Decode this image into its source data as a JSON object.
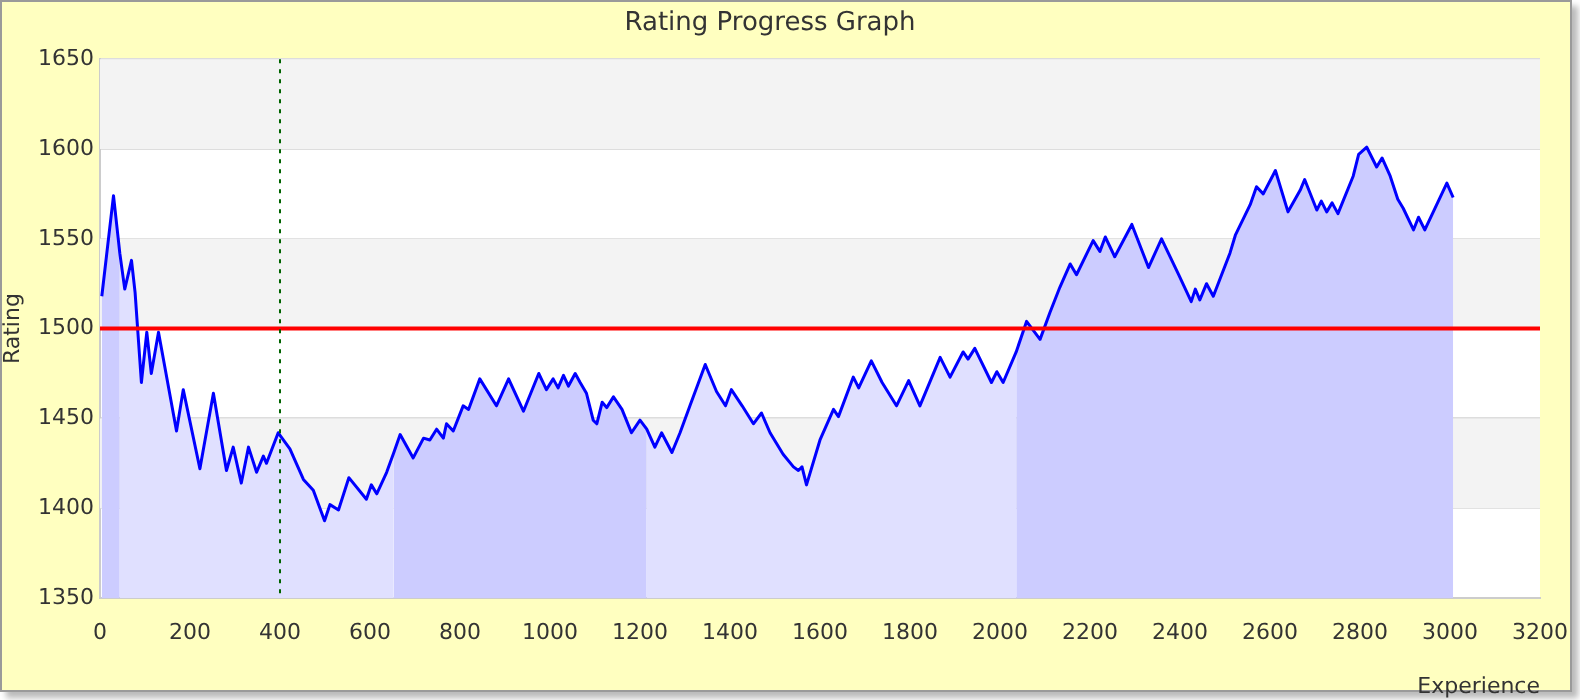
{
  "chart_data": {
    "type": "line",
    "title": "Rating Progress Graph",
    "xlabel": "Experience",
    "ylabel": "Rating",
    "xlim": [
      0,
      3200
    ],
    "xticks": [
      0,
      200,
      400,
      600,
      800,
      1000,
      1200,
      1400,
      1600,
      1800,
      2000,
      2200,
      2400,
      2600,
      2800,
      3000,
      3200
    ],
    "ylim": [
      1350,
      1650
    ],
    "yticks": [
      1350,
      1400,
      1450,
      1500,
      1550,
      1600,
      1650
    ],
    "grid": "y",
    "legend": false,
    "x": [
      4,
      30,
      44,
      55,
      70,
      78,
      92,
      104,
      114,
      130,
      170,
      185,
      222,
      252,
      281,
      296,
      314,
      330,
      348,
      363,
      370,
      396,
      422,
      452,
      474,
      499,
      511,
      530,
      553,
      592,
      603,
      615,
      637,
      653,
      667,
      696,
      719,
      733,
      748,
      763,
      770,
      785,
      807,
      819,
      844,
      881,
      908,
      941,
      975,
      992,
      1007,
      1018,
      1030,
      1041,
      1056,
      1067,
      1081,
      1096,
      1104,
      1116,
      1126,
      1141,
      1160,
      1181,
      1200,
      1215,
      1233,
      1248,
      1271,
      1289,
      1311,
      1345,
      1370,
      1390,
      1403,
      1427,
      1452,
      1470,
      1489,
      1518,
      1541,
      1552,
      1560,
      1570,
      1600,
      1630,
      1641,
      1674,
      1686,
      1714,
      1738,
      1770,
      1797,
      1822,
      1867,
      1889,
      1918,
      1929,
      1944,
      1981,
      1993,
      2007,
      2036,
      2059,
      2089,
      2111,
      2133,
      2156,
      2170,
      2207,
      2222,
      2234,
      2255,
      2293,
      2330,
      2359,
      2397,
      2425,
      2434,
      2444,
      2459,
      2474,
      2511,
      2523,
      2556,
      2570,
      2585,
      2612,
      2640,
      2667,
      2677,
      2704,
      2714,
      2726,
      2738,
      2751,
      2785,
      2797,
      2815,
      2837,
      2849,
      2867,
      2884,
      2896,
      2919,
      2930,
      2944,
      2993,
      3007
    ],
    "series": [
      {
        "color": "#0000ff",
        "values": [
          1518,
          1574,
          1542,
          1522,
          1538,
          1520,
          1470,
          1498,
          1475,
          1498,
          1443,
          1466,
          1422,
          1464,
          1421,
          1434,
          1414,
          1434,
          1420,
          1429,
          1425,
          1442,
          1433,
          1416,
          1410,
          1393,
          1402,
          1399,
          1417,
          1405,
          1413,
          1408,
          1420,
          1431,
          1441,
          1428,
          1439,
          1438,
          1444,
          1439,
          1447,
          1443,
          1457,
          1455,
          1472,
          1457,
          1472,
          1454,
          1475,
          1466,
          1472,
          1467,
          1474,
          1468,
          1475,
          1470,
          1464,
          1449,
          1447,
          1459,
          1456,
          1462,
          1455,
          1442,
          1449,
          1444,
          1434,
          1442,
          1431,
          1442,
          1457,
          1480,
          1465,
          1457,
          1466,
          1457,
          1447,
          1453,
          1442,
          1430,
          1423,
          1421,
          1423,
          1413,
          1438,
          1455,
          1451,
          1473,
          1467,
          1482,
          1470,
          1457,
          1471,
          1457,
          1484,
          1473,
          1487,
          1483,
          1489,
          1470,
          1476,
          1470,
          1487,
          1504,
          1494,
          1509,
          1523,
          1536,
          1530,
          1549,
          1543,
          1551,
          1540,
          1558,
          1534,
          1550,
          1530,
          1515,
          1522,
          1516,
          1525,
          1518,
          1542,
          1552,
          1569,
          1579,
          1575,
          1588,
          1565,
          1577,
          1583,
          1566,
          1571,
          1565,
          1570,
          1564,
          1585,
          1597,
          1601,
          1590,
          1595,
          1585,
          1572,
          1567,
          1555,
          1562,
          1555,
          1581,
          1573
        ]
      },
      {
        "type": "area",
        "color": "#ccccff",
        "x": [
          4,
          30,
          44
        ],
        "values": [
          1518,
          1574,
          1542
        ]
      },
      {
        "type": "area",
        "color": "#e0e0ff",
        "x": [
          44,
          55,
          70,
          78,
          92,
          104,
          114,
          130,
          170,
          185,
          222,
          252,
          281,
          296,
          314,
          330,
          348,
          363,
          370,
          396,
          422,
          452,
          474,
          499,
          511,
          530,
          553,
          592,
          603,
          615,
          637,
          653
        ],
        "values": [
          1542,
          1522,
          1538,
          1520,
          1470,
          1498,
          1475,
          1498,
          1443,
          1466,
          1422,
          1464,
          1421,
          1434,
          1414,
          1434,
          1420,
          1429,
          1425,
          1442,
          1433,
          1416,
          1410,
          1393,
          1402,
          1399,
          1417,
          1405,
          1413,
          1408,
          1420,
          1431
        ]
      },
      {
        "type": "area",
        "color": "#ccccff",
        "x": [
          653,
          667,
          696,
          719,
          733,
          748,
          763,
          770,
          785,
          807,
          819,
          844,
          881,
          908,
          941,
          975,
          992,
          1007,
          1018,
          1030,
          1041,
          1056,
          1067,
          1081,
          1096,
          1104,
          1116,
          1126,
          1141,
          1160,
          1181,
          1200,
          1215
        ],
        "values": [
          1431,
          1441,
          1428,
          1439,
          1438,
          1444,
          1439,
          1447,
          1443,
          1457,
          1455,
          1472,
          1457,
          1472,
          1454,
          1475,
          1466,
          1472,
          1467,
          1474,
          1468,
          1475,
          1470,
          1464,
          1449,
          1447,
          1459,
          1456,
          1462,
          1455,
          1442,
          1449,
          1444
        ]
      },
      {
        "type": "area",
        "color": "#e0e0ff",
        "x": [
          1215,
          1233,
          1248,
          1271,
          1289,
          1311,
          1345,
          1370,
          1390,
          1403,
          1427,
          1452,
          1470,
          1489,
          1518,
          1541,
          1552,
          1560,
          1570,
          1600,
          1630,
          1641,
          1674,
          1686,
          1714,
          1738,
          1770,
          1797,
          1822,
          1867,
          1889,
          1918,
          1929,
          1944,
          1981,
          1993,
          2007,
          2036
        ],
        "values": [
          1444,
          1434,
          1442,
          1431,
          1442,
          1457,
          1480,
          1465,
          1457,
          1466,
          1457,
          1447,
          1453,
          1442,
          1430,
          1423,
          1421,
          1423,
          1413,
          1438,
          1455,
          1451,
          1473,
          1467,
          1482,
          1470,
          1457,
          1471,
          1457,
          1484,
          1473,
          1487,
          1483,
          1489,
          1470,
          1476,
          1470,
          1487
        ]
      },
      {
        "type": "area",
        "color": "#ccccff",
        "x": [
          2036,
          2059,
          2089,
          2111,
          2133,
          2156,
          2170,
          2207,
          2222,
          2234,
          2255,
          2293,
          2330,
          2359,
          2397,
          2425,
          2434,
          2444,
          2459,
          2474,
          2511,
          2523,
          2556,
          2570,
          2585,
          2612,
          2640,
          2667,
          2677,
          2704,
          2714,
          2726,
          2738,
          2751,
          2785,
          2797,
          2815,
          2837,
          2849,
          2867,
          2884,
          2896,
          2919,
          2930,
          2944,
          2993,
          3007
        ],
        "values": [
          1487,
          1504,
          1494,
          1509,
          1523,
          1536,
          1530,
          1549,
          1543,
          1551,
          1540,
          1558,
          1534,
          1550,
          1530,
          1515,
          1522,
          1516,
          1525,
          1518,
          1542,
          1552,
          1569,
          1579,
          1575,
          1588,
          1565,
          1577,
          1583,
          1566,
          1571,
          1565,
          1570,
          1564,
          1585,
          1597,
          1601,
          1590,
          1595,
          1585,
          1572,
          1567,
          1555,
          1562,
          1555,
          1581,
          1573
        ]
      }
    ],
    "ref_lines": [
      {
        "axis": "y",
        "value": 1500,
        "color": "#ff0000",
        "line_style": "solid"
      },
      {
        "axis": "x",
        "value": 400,
        "color": "#006400",
        "line_style": "dotted"
      }
    ]
  }
}
